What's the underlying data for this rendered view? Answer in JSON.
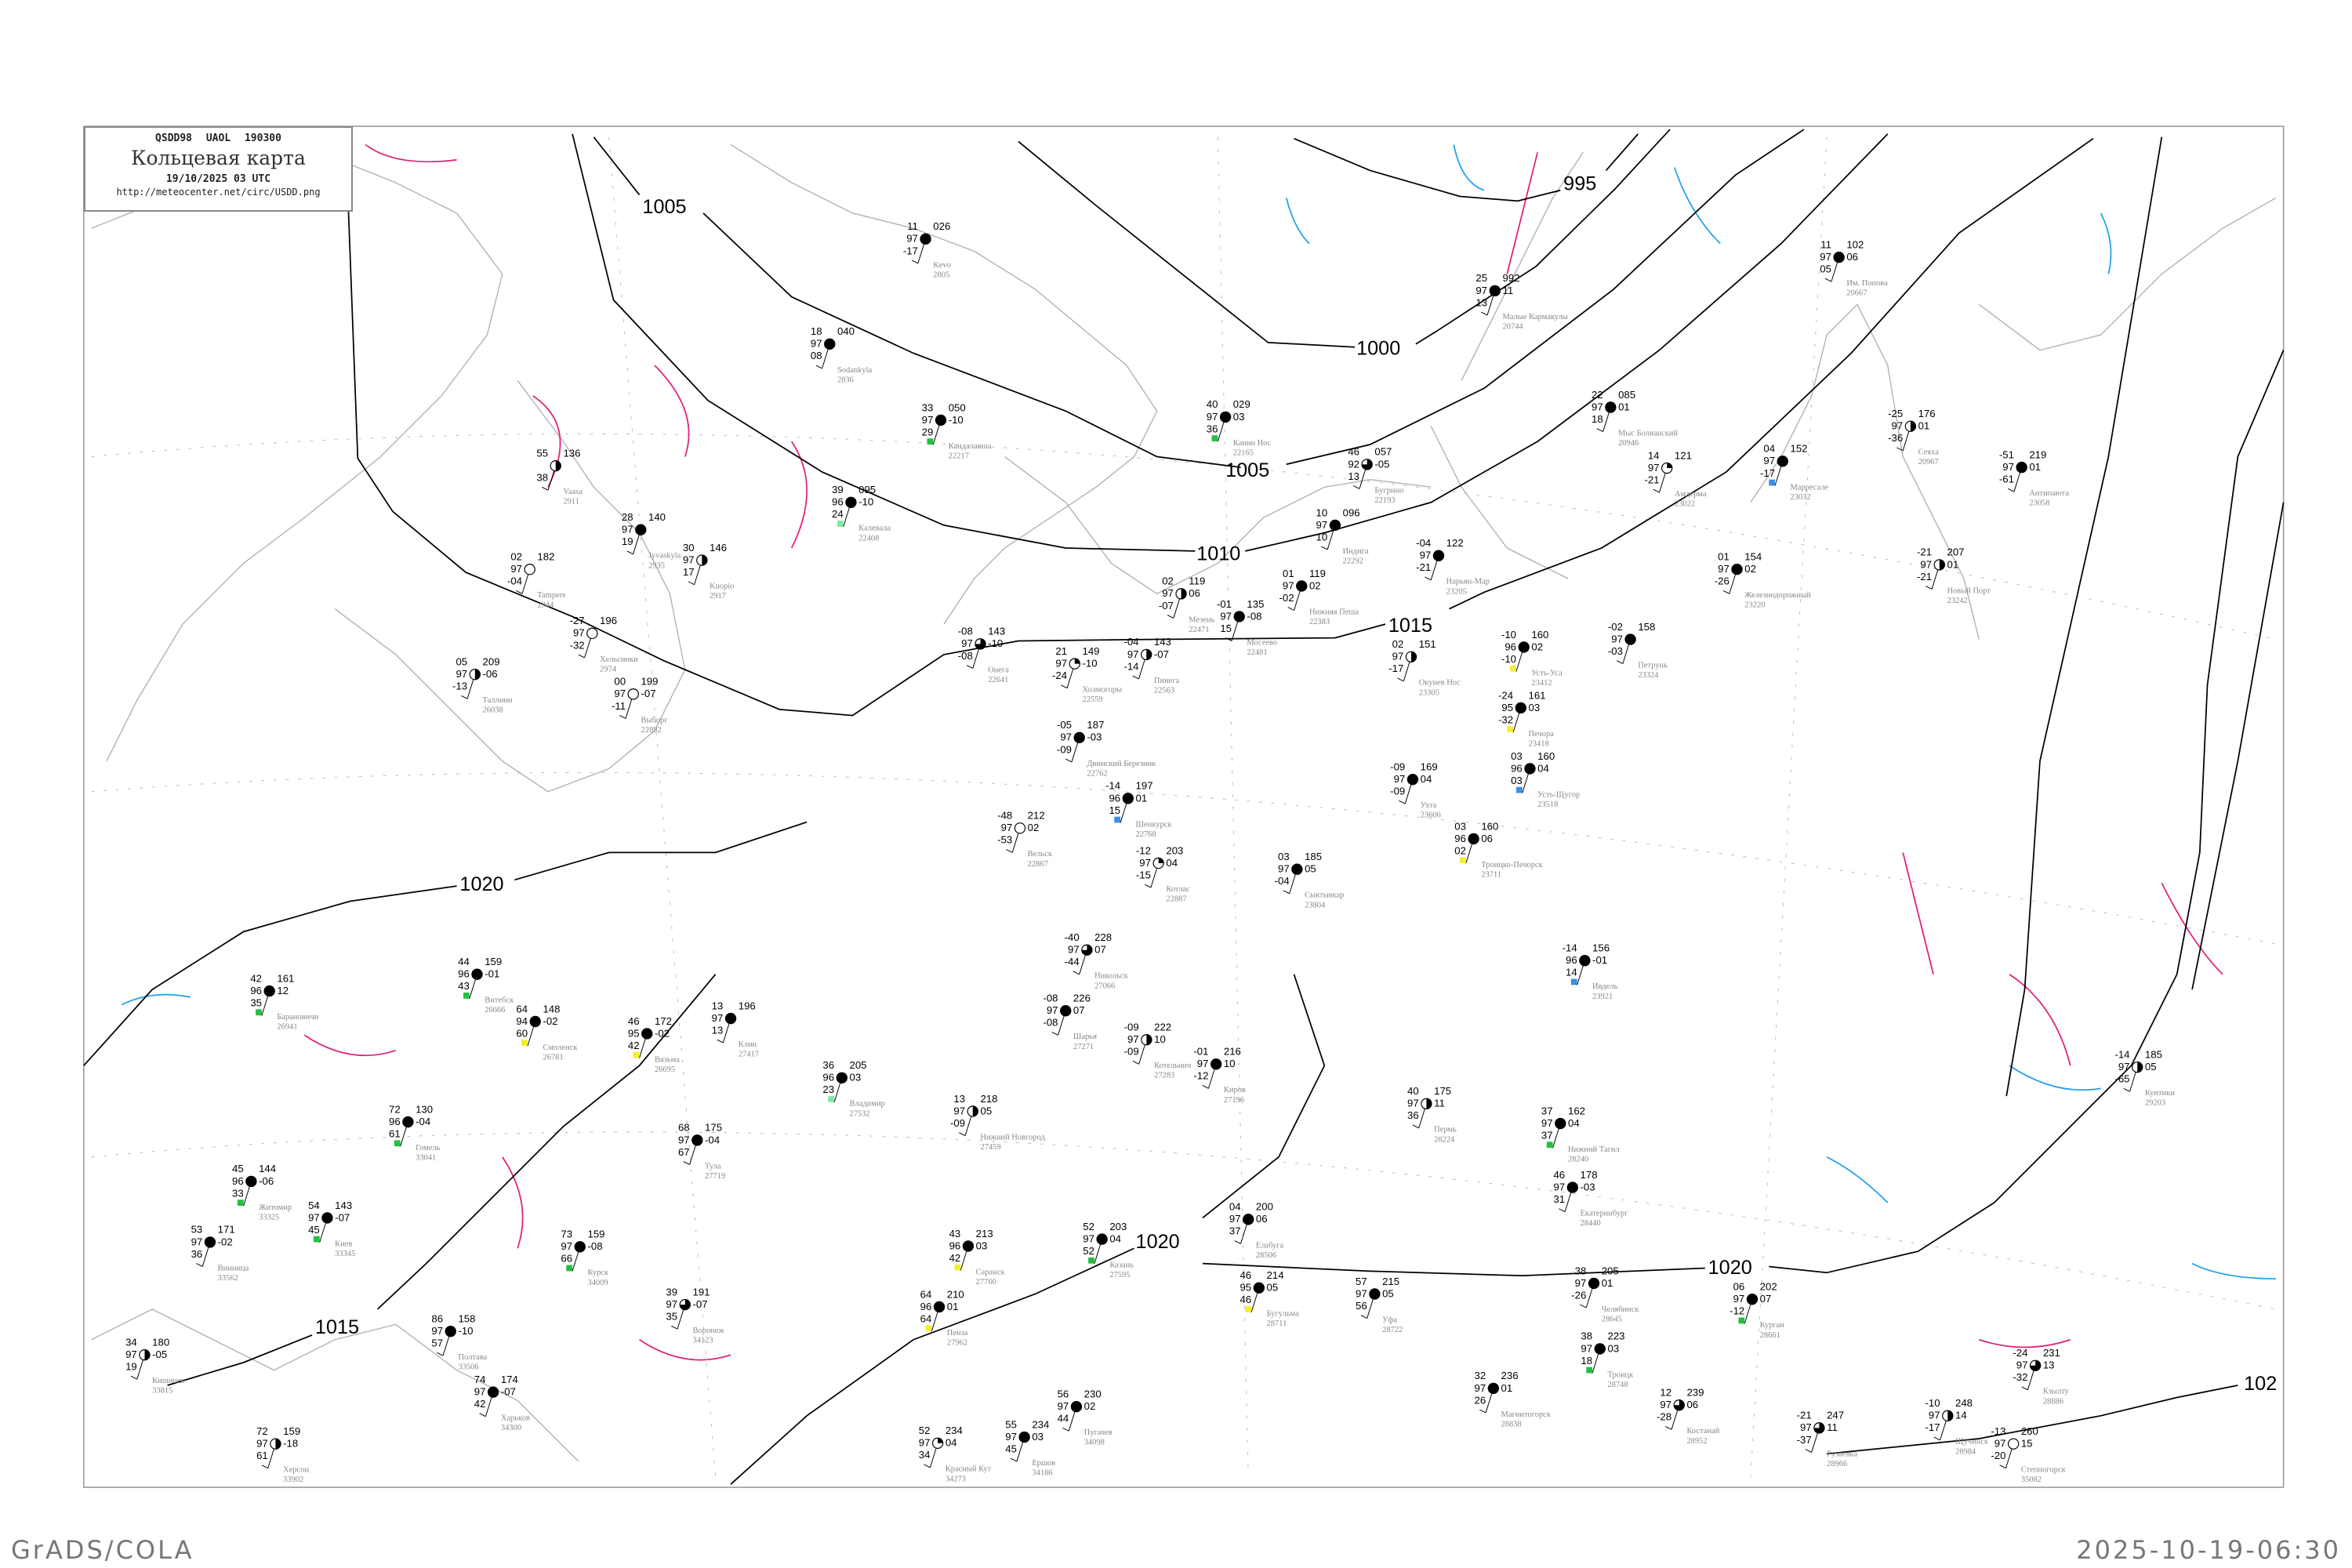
{
  "header": {
    "code_line": "QSDD98  UAOL  190300",
    "title": "Кольцевая карта",
    "date_line": "19/10/2025 03 UTC",
    "url": "http://meteocenter.net/circ/USDD.png"
  },
  "footer": {
    "left": "GrADS/COLA",
    "right": "2025-10-19-06:30"
  },
  "colors": {
    "isobar": "#000000",
    "coastline": "#b0b0b0",
    "warm_isotherm": "#e0207a",
    "cold_isotherm": "#1ea0e8",
    "flag_green": "#22c040",
    "flag_yellow": "#f4ee30",
    "flag_blue": "#3a8ee8",
    "flag_lightgreen": "#7ee8a0",
    "station_label": "#888888"
  },
  "isobars": [
    {
      "label": "995"
    },
    {
      "label": "1000"
    },
    {
      "label": "1005"
    },
    {
      "label": "1005"
    },
    {
      "label": "1010"
    },
    {
      "label": "1015"
    },
    {
      "label": "1015"
    },
    {
      "label": "1020"
    },
    {
      "label": "1020"
    },
    {
      "label": "1020"
    },
    {
      "label": "102"
    }
  ],
  "stations": [
    {
      "name": "Малые Кармакулы",
      "id": "20744",
      "temp": "25",
      "vis": "97",
      "dew": "13",
      "pres": "992",
      "tend": "11",
      "cover": 8
    },
    {
      "name": "Им. Попова",
      "id": "20667",
      "temp": "11",
      "vis": "97",
      "dew": "05",
      "pres": "102",
      "tend": "06",
      "cover": 8
    },
    {
      "name": "Мыс Болванский",
      "id": "20946",
      "temp": "22",
      "vis": "97",
      "dew": "18",
      "pres": "085",
      "tend": "01",
      "cover": 8
    },
    {
      "name": "Амдерма",
      "id": "23022",
      "temp": "14",
      "vis": "97",
      "dew": "-21",
      "pres": "121",
      "tend": "",
      "cover": 2
    },
    {
      "name": "Марресале",
      "id": "23032",
      "temp": "04",
      "vis": "97",
      "dew": "-17",
      "pres": "152",
      "tend": "",
      "cover": 8,
      "flag": "blue"
    },
    {
      "name": "Сеяха",
      "id": "20967",
      "temp": "-25",
      "vis": "97",
      "dew": "-36",
      "pres": "176",
      "tend": "01",
      "cover": 4
    },
    {
      "name": "Антипаюта",
      "id": "23058",
      "temp": "-51",
      "vis": "97",
      "dew": "-61",
      "pres": "219",
      "tend": "01",
      "cover": 8
    },
    {
      "name": "Новый Порт",
      "id": "23242",
      "temp": "-21",
      "vis": "97",
      "dew": "-21",
      "pres": "207",
      "tend": "01",
      "cover": 4
    },
    {
      "name": "Железнодорожный",
      "id": "23220",
      "temp": "01",
      "vis": "97",
      "dew": "-26",
      "pres": "154",
      "tend": "02",
      "cover": 8
    },
    {
      "name": "Нарьян-Мар",
      "id": "23205",
      "temp": "-04",
      "vis": "97",
      "dew": "-21",
      "pres": "122",
      "tend": "",
      "cover": 8
    },
    {
      "name": "Индига",
      "id": "22292",
      "temp": "10",
      "vis": "97",
      "dew": "10",
      "pres": "096",
      "tend": "",
      "cover": 8
    },
    {
      "name": "Канин Нос",
      "id": "22165",
      "temp": "40",
      "vis": "97",
      "dew": "36",
      "pres": "029",
      "tend": "03",
      "cover": 8,
      "flag": "green"
    },
    {
      "name": "Бугрино",
      "id": "22193",
      "temp": "46",
      "vis": "92",
      "dew": "13",
      "pres": "057",
      "tend": "-05",
      "cover": 6
    },
    {
      "name": "Нижняя Пеша",
      "id": "22383",
      "temp": "01",
      "vis": "97",
      "dew": "-02",
      "pres": "119",
      "tend": "02",
      "cover": 8
    },
    {
      "name": "Окунев Нос",
      "id": "23305",
      "temp": "02",
      "vis": "97",
      "dew": "-17",
      "pres": "151",
      "tend": "",
      "cover": 4
    },
    {
      "name": "Петрунь",
      "id": "23324",
      "temp": "-02",
      "vis": "97",
      "dew": "-03",
      "pres": "158",
      "tend": "",
      "cover": 8
    },
    {
      "name": "Усть-Уса",
      "id": "23412",
      "temp": "-10",
      "vis": "96",
      "dew": "-10",
      "pres": "160",
      "tend": "02",
      "cover": 8,
      "flag": "yellow"
    },
    {
      "name": "Печора",
      "id": "23418",
      "temp": "-24",
      "vis": "95",
      "dew": "-32",
      "pres": "161",
      "tend": "03",
      "cover": 8,
      "flag": "yellow"
    },
    {
      "name": "Усть-Щугор",
      "id": "23518",
      "temp": "03",
      "vis": "96",
      "dew": "03",
      "pres": "160",
      "tend": "04",
      "cover": 8,
      "flag": "blue"
    },
    {
      "name": "Ухта",
      "id": "23606",
      "temp": "-09",
      "vis": "97",
      "dew": "-09",
      "pres": "169",
      "tend": "04",
      "cover": 8
    },
    {
      "name": "Троицко-Печорск",
      "id": "23711",
      "temp": "03",
      "vis": "96",
      "dew": "02",
      "pres": "160",
      "tend": "06",
      "cover": 8,
      "flag": "yellow"
    },
    {
      "name": "Сыктывкар",
      "id": "23804",
      "temp": "03",
      "vis": "97",
      "dew": "-04",
      "pres": "185",
      "tend": "05",
      "cover": 8
    },
    {
      "name": "Мезень",
      "id": "22471",
      "temp": "02",
      "vis": "97",
      "dew": "-07",
      "pres": "119",
      "tend": "06",
      "cover": 4
    },
    {
      "name": "Мосеево",
      "id": "22481",
      "temp": "-01",
      "vis": "97",
      "dew": "15",
      "pres": "135",
      "tend": "-08",
      "cover": 8
    },
    {
      "name": "Кунтики",
      "id": "29203",
      "temp": "-14",
      "vis": "97",
      "dew": "-65",
      "pres": "185",
      "tend": "05",
      "cover": 4
    },
    {
      "name": "Челябинск",
      "id": "28645",
      "temp": "38",
      "vis": "97",
      "dew": "-26",
      "pres": "205",
      "tend": "01",
      "cover": 8
    },
    {
      "name": "Екатеринбург",
      "id": "28440",
      "temp": "46",
      "vis": "97",
      "dew": "31",
      "pres": "178",
      "tend": "-03",
      "cover": 8
    },
    {
      "name": "Пермь",
      "id": "28224",
      "temp": "40",
      "vis": "97",
      "dew": "36",
      "pres": "175",
      "tend": "11",
      "cover": 4
    },
    {
      "name": "Уфа",
      "id": "28722",
      "temp": "57",
      "vis": "97",
      "dew": "56",
      "pres": "215",
      "tend": "05",
      "cover": 8
    },
    {
      "name": "Курган",
      "id": "28661",
      "temp": "06",
      "vis": "97",
      "dew": "-12",
      "pres": "202",
      "tend": "07",
      "cover": 8,
      "flag": "green"
    },
    {
      "name": "Троицк",
      "id": "28748",
      "temp": "38",
      "vis": "97",
      "dew": "18",
      "pres": "223",
      "tend": "03",
      "cover": 8,
      "flag": "green"
    },
    {
      "name": "Магнитогорск",
      "id": "28838",
      "temp": "32",
      "vis": "97",
      "dew": "26",
      "pres": "236",
      "tend": "01",
      "cover": 8
    },
    {
      "name": "Костанай",
      "id": "28952",
      "temp": "12",
      "vis": "97",
      "dew": "-28",
      "pres": "239",
      "tend": "06",
      "cover": 6
    },
    {
      "name": "Кзылту",
      "id": "28886",
      "temp": "-24",
      "vis": "97",
      "dew": "-32",
      "pres": "231",
      "tend": "13",
      "cover": 6
    },
    {
      "name": "Степногорск",
      "id": "35082",
      "temp": "-13",
      "vis": "97",
      "dew": "-20",
      "pres": "260",
      "tend": "15",
      "cover": 0
    },
    {
      "name": "Щучинск",
      "id": "28984",
      "temp": "-10",
      "vis": "97",
      "dew": "-17",
      "pres": "248",
      "tend": "14",
      "cover": 4
    },
    {
      "name": "Рузаевка",
      "id": "28966",
      "temp": "-21",
      "vis": "97",
      "dew": "-37",
      "pres": "247",
      "tend": "11",
      "cover": 6
    },
    {
      "name": "Нижний Тагил",
      "id": "28240",
      "temp": "37",
      "vis": "97",
      "dew": "37",
      "pres": "162",
      "tend": "04",
      "cover": 8,
      "flag": "green"
    },
    {
      "name": "Ивдель",
      "id": "23921",
      "temp": "-14",
      "vis": "96",
      "dew": "14",
      "pres": "156",
      "tend": "-01",
      "cover": 8,
      "flag": "blue"
    },
    {
      "name": "Киев",
      "id": "33345",
      "temp": "54",
      "vis": "97",
      "dew": "45",
      "pres": "143",
      "tend": "-07",
      "cover": 8,
      "flag": "green"
    },
    {
      "name": "Барановичи",
      "id": "26941",
      "temp": "42",
      "vis": "96",
      "dew": "35",
      "pres": "161",
      "tend": "12",
      "cover": 8,
      "flag": "green"
    },
    {
      "name": "Смоленск",
      "id": "26781",
      "temp": "64",
      "vis": "94",
      "dew": "60",
      "pres": "148",
      "tend": "-02",
      "cover": 8,
      "flag": "yellow"
    },
    {
      "name": "Курск",
      "id": "34009",
      "temp": "73",
      "vis": "97",
      "dew": "66",
      "pres": "159",
      "tend": "-08",
      "cover": 8,
      "flag": "green"
    },
    {
      "name": "Харьков",
      "id": "34300",
      "temp": "74",
      "vis": "97",
      "dew": "42",
      "pres": "174",
      "tend": "-07",
      "cover": 8
    },
    {
      "name": "Воронеж",
      "id": "34123",
      "temp": "39",
      "vis": "97",
      "dew": "35",
      "pres": "191",
      "tend": "-07",
      "cover": 6
    },
    {
      "name": "Тула",
      "id": "27719",
      "temp": "68",
      "vis": "97",
      "dew": "67",
      "pres": "175",
      "tend": "-04",
      "cover": 8
    },
    {
      "name": "Кишинев",
      "id": "33815",
      "temp": "34",
      "vis": "97",
      "dew": "19",
      "pres": "180",
      "tend": "-05",
      "cover": 4
    },
    {
      "name": "Винница",
      "id": "33562",
      "temp": "53",
      "vis": "97",
      "dew": "36",
      "pres": "171",
      "tend": "-02",
      "cover": 8
    },
    {
      "name": "Житомир",
      "id": "33325",
      "temp": "45",
      "vis": "96",
      "dew": "33",
      "pres": "144",
      "tend": "-06",
      "cover": 8,
      "flag": "green"
    },
    {
      "name": "Гомель",
      "id": "33041",
      "temp": "72",
      "vis": "96",
      "dew": "61",
      "pres": "130",
      "tend": "-04",
      "cover": 8,
      "flag": "green"
    },
    {
      "name": "Витебск",
      "id": "26666",
      "temp": "44",
      "vis": "96",
      "dew": "43",
      "pres": "159",
      "tend": "-01",
      "cover": 8,
      "flag": "green"
    },
    {
      "name": "Полтава",
      "id": "33506",
      "temp": "86",
      "vis": "97",
      "dew": "57",
      "pres": "158",
      "tend": "-10",
      "cover": 8
    },
    {
      "name": "Херсон",
      "id": "33902",
      "temp": "72",
      "vis": "97",
      "dew": "61",
      "pres": "159",
      "tend": "-18",
      "cover": 4
    },
    {
      "name": "Вязьма",
      "id": "26695",
      "temp": "46",
      "vis": "95",
      "dew": "42",
      "pres": "172",
      "tend": "-02",
      "cover": 8,
      "flag": "yellow"
    },
    {
      "name": "Клин",
      "id": "27417",
      "temp": "13",
      "vis": "97",
      "dew": "13",
      "pres": "196",
      "tend": "",
      "cover": 8
    },
    {
      "name": "Нижний Новгород",
      "id": "27459",
      "temp": "13",
      "vis": "97",
      "dew": "-09",
      "pres": "218",
      "tend": "05",
      "cover": 4
    },
    {
      "name": "Владимир",
      "id": "27532",
      "temp": "36",
      "vis": "96",
      "dew": "23",
      "pres": "205",
      "tend": "03",
      "cover": 8,
      "flag": "lightgreen"
    },
    {
      "name": "Казань",
      "id": "27595",
      "temp": "52",
      "vis": "97",
      "dew": "52",
      "pres": "203",
      "tend": "04",
      "cover": 8,
      "flag": "green"
    },
    {
      "name": "Киров",
      "id": "27196",
      "temp": "-01",
      "vis": "97",
      "dew": "-12",
      "pres": "216",
      "tend": "10",
      "cover": 8
    },
    {
      "name": "Котельнич",
      "id": "27283",
      "temp": "-09",
      "vis": "97",
      "dew": "-09",
      "pres": "222",
      "tend": "10",
      "cover": 4
    },
    {
      "name": "Пенза",
      "id": "27962",
      "temp": "64",
      "vis": "96",
      "dew": "64",
      "pres": "210",
      "tend": "01",
      "cover": 8,
      "flag": "yellow"
    },
    {
      "name": "Саранск",
      "id": "27760",
      "temp": "43",
      "vis": "96",
      "dew": "42",
      "pres": "213",
      "tend": "03",
      "cover": 8,
      "flag": "yellow"
    },
    {
      "name": "Елабуга",
      "id": "28506",
      "temp": "04",
      "vis": "97",
      "dew": "37",
      "pres": "200",
      "tend": "06",
      "cover": 8
    },
    {
      "name": "Бугульма",
      "id": "28711",
      "temp": "46",
      "vis": "95",
      "dew": "46",
      "pres": "214",
      "tend": "05",
      "cover": 8,
      "flag": "yellow"
    },
    {
      "name": "Шарья",
      "id": "27271",
      "temp": "-08",
      "vis": "97",
      "dew": "-08",
      "pres": "226",
      "tend": "07",
      "cover": 8
    },
    {
      "name": "Никольск",
      "id": "27066",
      "temp": "-40",
      "vis": "97",
      "dew": "-44",
      "pres": "228",
      "tend": "07",
      "cover": 6
    },
    {
      "name": "Красный Кут",
      "id": "34273",
      "temp": "52",
      "vis": "97",
      "dew": "34",
      "pres": "234",
      "tend": "04",
      "cover": 2
    },
    {
      "name": "Ершов",
      "id": "34186",
      "temp": "55",
      "vis": "97",
      "dew": "45",
      "pres": "234",
      "tend": "03",
      "cover": 8
    },
    {
      "name": "Пугачев",
      "id": "34098",
      "temp": "56",
      "vis": "97",
      "dew": "44",
      "pres": "230",
      "tend": "02",
      "cover": 8
    },
    {
      "name": "Kevo",
      "id": "2805",
      "temp": "11",
      "vis": "97",
      "dew": "-17",
      "pres": "026",
      "tend": "",
      "cover": 8
    },
    {
      "name": "Sodankyla",
      "id": "2836",
      "temp": "18",
      "vis": "97",
      "dew": "08",
      "pres": "040",
      "tend": "",
      "cover": 8
    },
    {
      "name": "Кандалакша",
      "id": "22217",
      "temp": "33",
      "vis": "97",
      "dew": "29",
      "pres": "050",
      "tend": "-10",
      "cover": 8,
      "flag": "green"
    },
    {
      "name": "Калевала",
      "id": "22408",
      "temp": "39",
      "vis": "96",
      "dew": "24",
      "pres": "095",
      "tend": "-10",
      "cover": 8,
      "flag": "lightgreen"
    },
    {
      "name": "Онега",
      "id": "22641",
      "temp": "-08",
      "vis": "97",
      "dew": "-08",
      "pres": "143",
      "tend": "-10",
      "cover": 6
    },
    {
      "name": "Холмогоры",
      "id": "22559",
      "temp": "21",
      "vis": "97",
      "dew": "-24",
      "pres": "149",
      "tend": "-10",
      "cover": 2
    },
    {
      "name": "Пинега",
      "id": "22563",
      "temp": "-04",
      "vis": "97",
      "dew": "-14",
      "pres": "143",
      "tend": "-07",
      "cover": 4
    },
    {
      "name": "Двинский Березник",
      "id": "22762",
      "temp": "-05",
      "vis": "97",
      "dew": "-09",
      "pres": "187",
      "tend": "-03",
      "cover": 8
    },
    {
      "name": "Вельск",
      "id": "22867",
      "temp": "-48",
      "vis": "97",
      "dew": "-53",
      "pres": "212",
      "tend": "02",
      "cover": 0
    },
    {
      "name": "Котлас",
      "id": "22887",
      "temp": "-12",
      "vis": "97",
      "dew": "-15",
      "pres": "203",
      "tend": "04",
      "cover": 2
    },
    {
      "name": "Шенкурск",
      "id": "22768",
      "temp": "-14",
      "vis": "96",
      "dew": "15",
      "pres": "197",
      "tend": "01",
      "cover": 8,
      "flag": "blue"
    },
    {
      "name": "Vaasa",
      "id": "2911",
      "temp": "55",
      "vis": "",
      "dew": "38",
      "pres": "136",
      "tend": "",
      "cover": 4
    },
    {
      "name": "Tampere",
      "id": "2944",
      "temp": "02",
      "vis": "97",
      "dew": "-04",
      "pres": "182",
      "tend": "",
      "cover": 0
    },
    {
      "name": "Хельсинки",
      "id": "2974",
      "temp": "-27",
      "vis": "97",
      "dew": "-32",
      "pres": "196",
      "tend": "",
      "cover": 0
    },
    {
      "name": "Kuopio",
      "id": "2917",
      "temp": "30",
      "vis": "97",
      "dew": "17",
      "pres": "146",
      "tend": "",
      "cover": 4
    },
    {
      "name": "Jyvaskyla",
      "id": "2935",
      "temp": "28",
      "vis": "97",
      "dew": "19",
      "pres": "140",
      "tend": "",
      "cover": 8
    },
    {
      "name": "Таллинн",
      "id": "26038",
      "temp": "05",
      "vis": "97",
      "dew": "-13",
      "pres": "209",
      "tend": "-06",
      "cover": 4
    },
    {
      "name": "Выборг",
      "id": "22892",
      "temp": "00",
      "vis": "97",
      "dew": "-11",
      "pres": "199",
      "tend": "-07",
      "cover": 0
    }
  ]
}
